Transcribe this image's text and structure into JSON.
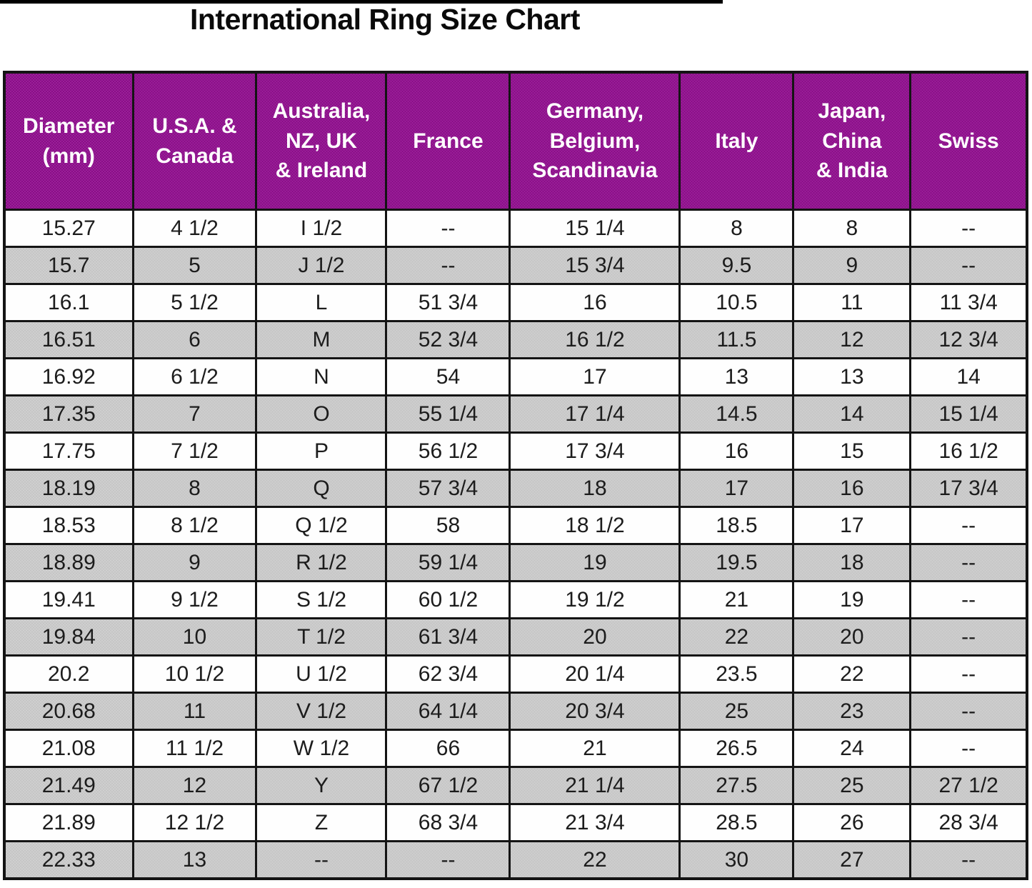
{
  "title": "International Ring Size Chart",
  "chart_data": {
    "type": "table",
    "title": "International Ring Size Chart",
    "columns": [
      "Diameter (mm)",
      "U.S.A. & Canada",
      "Australia, NZ, UK & Ireland",
      "France",
      "Germany, Belgium, Scandinavia",
      "Italy",
      "Japan, China & India",
      "Swiss"
    ],
    "header_lines": [
      "Diameter\n(mm)",
      "U.S.A. &\nCanada",
      "Australia,\nNZ, UK\n& Ireland",
      "France",
      "Germany,\nBelgium,\nScandinavia",
      "Italy",
      "Japan,\nChina\n& India",
      "Swiss"
    ],
    "rows": [
      [
        "15.27",
        "4 1/2",
        "I 1/2",
        "--",
        "15 1/4",
        "8",
        "8",
        "--"
      ],
      [
        "15.7",
        "5",
        "J 1/2",
        "--",
        "15 3/4",
        "9.5",
        "9",
        "--"
      ],
      [
        "16.1",
        "5 1/2",
        "L",
        "51 3/4",
        "16",
        "10.5",
        "11",
        "11 3/4"
      ],
      [
        "16.51",
        "6",
        "M",
        "52 3/4",
        "16 1/2",
        "11.5",
        "12",
        "12 3/4"
      ],
      [
        "16.92",
        "6 1/2",
        "N",
        "54",
        "17",
        "13",
        "13",
        "14"
      ],
      [
        "17.35",
        "7",
        "O",
        "55 1/4",
        "17 1/4",
        "14.5",
        "14",
        "15 1/4"
      ],
      [
        "17.75",
        "7 1/2",
        "P",
        "56 1/2",
        "17 3/4",
        "16",
        "15",
        "16 1/2"
      ],
      [
        "18.19",
        "8",
        "Q",
        "57 3/4",
        "18",
        "17",
        "16",
        "17 3/4"
      ],
      [
        "18.53",
        "8 1/2",
        "Q 1/2",
        "58",
        "18 1/2",
        "18.5",
        "17",
        "--"
      ],
      [
        "18.89",
        "9",
        "R 1/2",
        "59 1/4",
        "19",
        "19.5",
        "18",
        "--"
      ],
      [
        "19.41",
        "9 1/2",
        "S 1/2",
        "60 1/2",
        "19 1/2",
        "21",
        "19",
        "--"
      ],
      [
        "19.84",
        "10",
        "T 1/2",
        "61 3/4",
        "20",
        "22",
        "20",
        "--"
      ],
      [
        "20.2",
        "10 1/2",
        "U 1/2",
        "62 3/4",
        "20 1/4",
        "23.5",
        "22",
        "--"
      ],
      [
        "20.68",
        "11",
        "V 1/2",
        "64 1/4",
        "20 3/4",
        "25",
        "23",
        "--"
      ],
      [
        "21.08",
        "11 1/2",
        "W 1/2",
        "66",
        "21",
        "26.5",
        "24",
        "--"
      ],
      [
        "21.49",
        "12",
        "Y",
        "67 1/2",
        "21 1/4",
        "27.5",
        "25",
        "27 1/2"
      ],
      [
        "21.89",
        "12 1/2",
        "Z",
        "68 3/4",
        "21 3/4",
        "28.5",
        "26",
        "28 3/4"
      ],
      [
        "22.33",
        "13",
        "--",
        "--",
        "22",
        "30",
        "27",
        "--"
      ]
    ],
    "empty_cell_marker": "--",
    "layout_hints": {
      "striping": "alternate data rows shaded gray starting with second row",
      "header_position": "top"
    },
    "colors": {
      "header_bg": "#8E128C",
      "header_text": "#FFFFFF",
      "row_bg": "#FFFFFF",
      "row_alt_bg": "#C9C9C9",
      "border": "#141414",
      "title_text": "#0A0A0A"
    }
  }
}
